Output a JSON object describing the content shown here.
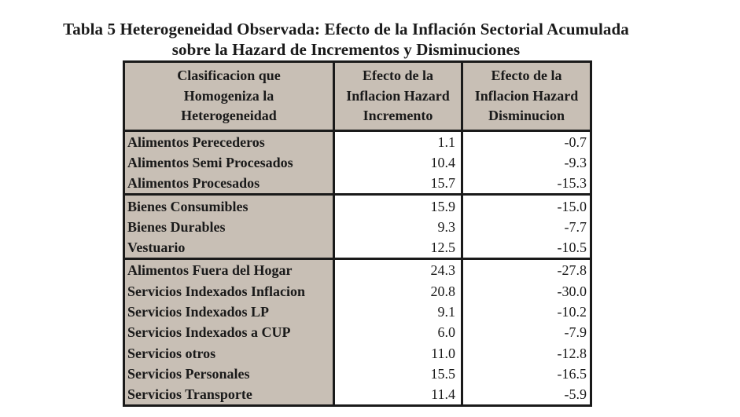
{
  "title": {
    "line1": "Tabla 5 Heterogeneidad Observada: Efecto de la Inflación Sectorial Acumulada",
    "line2": "sobre la Hazard de Incrementos y Disminuciones"
  },
  "table": {
    "headers": [
      [
        "Clasificacion que",
        "Homogeniza la",
        "Heterogeneidad"
      ],
      [
        "Efecto de la",
        "Inflacion Hazard",
        "Incremento"
      ],
      [
        "Efecto de la",
        "Inflacion Hazard",
        "Disminucion"
      ]
    ],
    "groups": [
      {
        "rows": [
          {
            "label": "Alimentos Perecederos",
            "incremento": "1.1",
            "disminucion": "-0.7"
          },
          {
            "label": "Alimentos Semi Procesados",
            "incremento": "10.4",
            "disminucion": "-9.3"
          },
          {
            "label": "Alimentos Procesados",
            "incremento": "15.7",
            "disminucion": "-15.3"
          }
        ]
      },
      {
        "rows": [
          {
            "label": "Bienes Consumibles",
            "incremento": "15.9",
            "disminucion": "-15.0"
          },
          {
            "label": "Bienes Durables",
            "incremento": "9.3",
            "disminucion": "-7.7"
          },
          {
            "label": "Vestuario",
            "incremento": "12.5",
            "disminucion": "-10.5"
          }
        ]
      },
      {
        "rows": [
          {
            "label": "Alimentos Fuera del Hogar",
            "incremento": "24.3",
            "disminucion": "-27.8"
          },
          {
            "label": "Servicios Indexados Inflacion",
            "incremento": "20.8",
            "disminucion": "-30.0"
          },
          {
            "label": "Servicios Indexados LP",
            "incremento": "9.1",
            "disminucion": "-10.2"
          },
          {
            "label": "Servicios Indexados a CUP",
            "incremento": "6.0",
            "disminucion": "-7.9"
          },
          {
            "label": "Servicios otros",
            "incremento": "11.0",
            "disminucion": "-12.8"
          },
          {
            "label": "Servicios Personales",
            "incremento": "15.5",
            "disminucion": "-16.5"
          },
          {
            "label": "Servicios Transporte",
            "incremento": "11.4",
            "disminucion": "-5.9"
          }
        ]
      }
    ]
  }
}
